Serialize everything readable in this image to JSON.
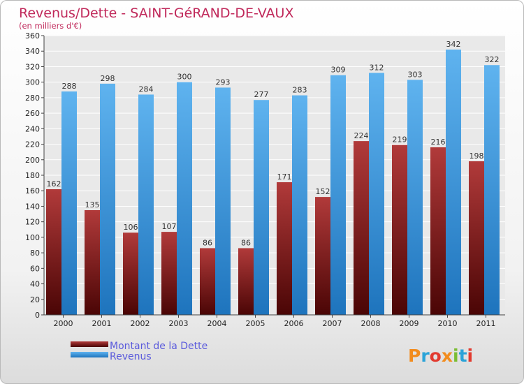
{
  "chart_data": {
    "type": "bar",
    "title": "Revenus/Dette - SAINT-GéRAND-DE-VAUX",
    "subtitle": "(en milliers d'€)",
    "categories": [
      "2000",
      "2001",
      "2002",
      "2003",
      "2004",
      "2005",
      "2006",
      "2007",
      "2008",
      "2009",
      "2010",
      "2011"
    ],
    "series": [
      {
        "name": "Montant de la Dette",
        "color": "#7a1c1c",
        "values": [
          162,
          135,
          106,
          107,
          86,
          86,
          171,
          152,
          224,
          219,
          216,
          198
        ]
      },
      {
        "name": "Revenus",
        "color": "#3d9be0",
        "values": [
          288,
          298,
          284,
          300,
          293,
          277,
          283,
          309,
          312,
          303,
          342,
          322
        ]
      }
    ],
    "ylim": [
      0,
      360
    ],
    "ytick_step": 20,
    "grid": true,
    "legend_position": "bottom-left",
    "data_labels": true
  },
  "brand": {
    "logo_text": "Proxiti",
    "colors": [
      "#f28c1e",
      "#2aa3d8",
      "#e23a2f",
      "#f28c1e",
      "#7bbd33",
      "#2aa3d8",
      "#e23a2f"
    ]
  },
  "title_color": "#c0285a"
}
